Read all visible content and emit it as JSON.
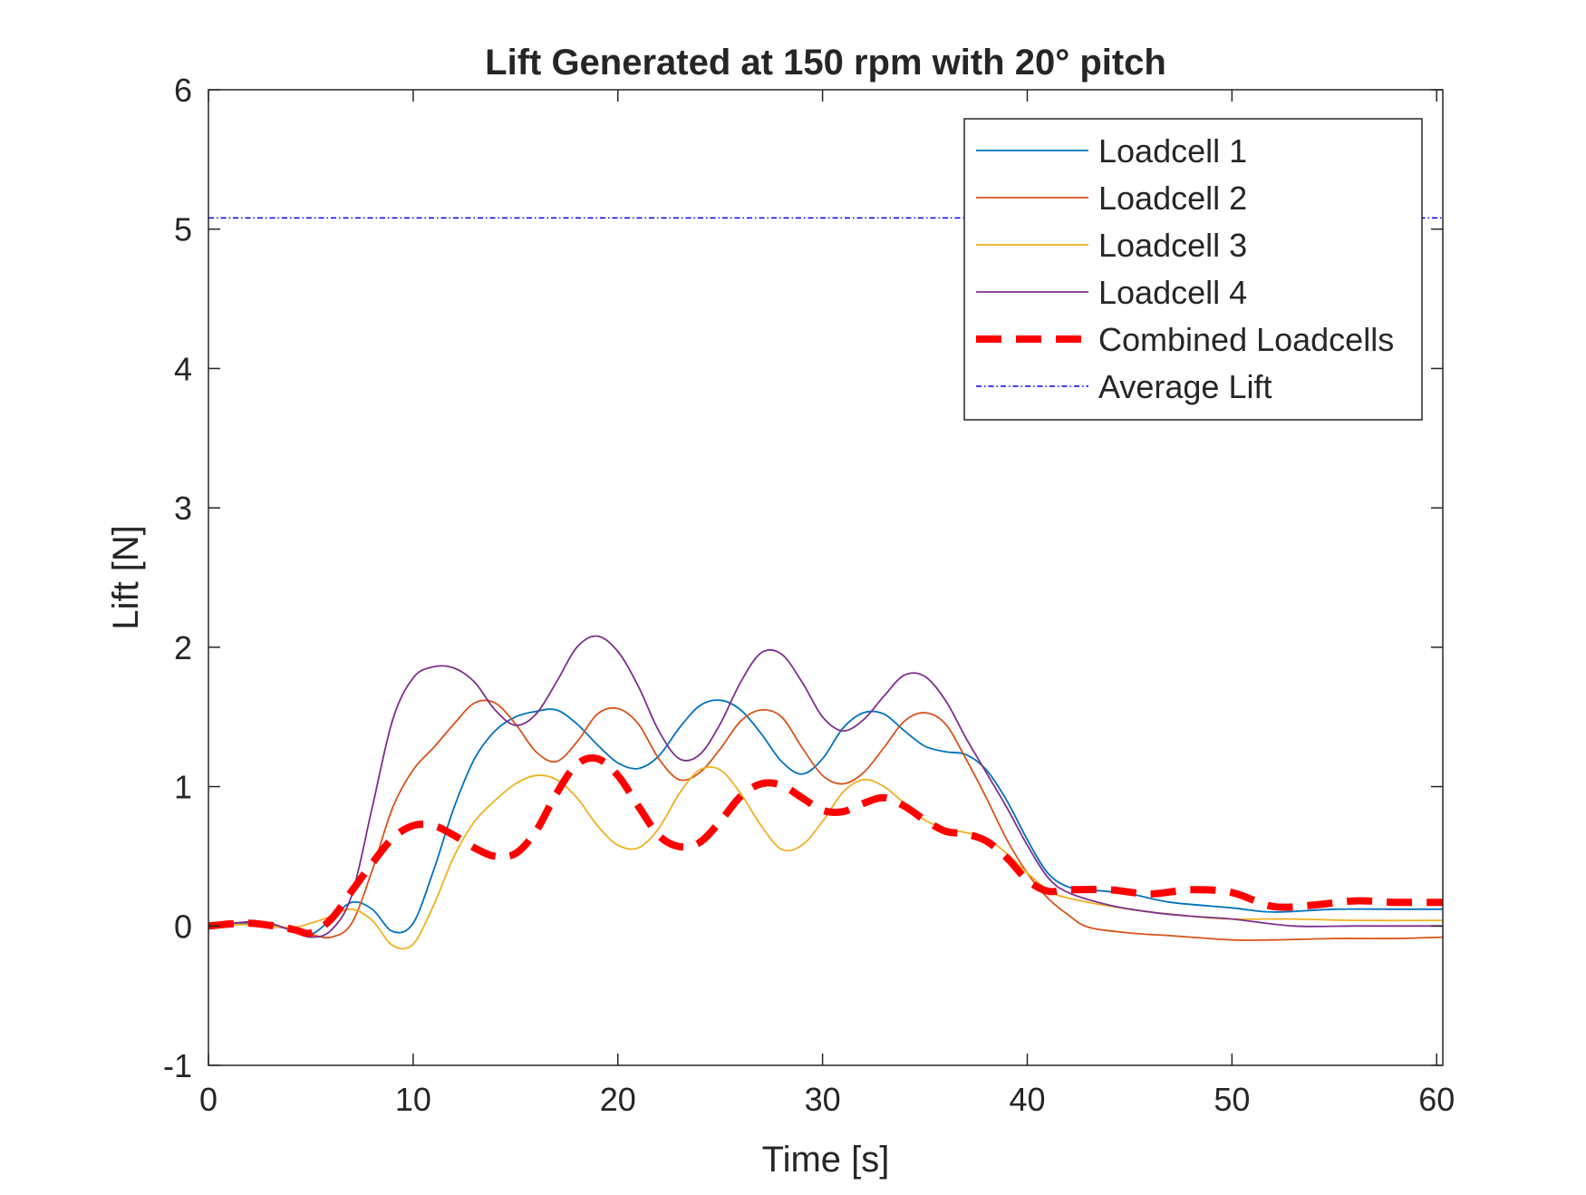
{
  "chart_data": {
    "type": "line",
    "title": "Lift Generated at 150 rpm with 20° pitch",
    "xlabel": "Time [s]",
    "ylabel": "Lift [N]",
    "xlim": [
      0,
      60.3
    ],
    "ylim": [
      -1,
      6
    ],
    "xticks": [
      0,
      10,
      20,
      30,
      40,
      50,
      60
    ],
    "yticks": [
      -1,
      0,
      1,
      2,
      3,
      4,
      5,
      6
    ],
    "grid": false,
    "legend_position": "top-right",
    "series": [
      {
        "name": "Loadcell 1",
        "color": "#0072BD",
        "style": "solid",
        "points": [
          [
            0,
            0
          ],
          [
            2,
            0.02
          ],
          [
            4,
            -0.02
          ],
          [
            5,
            -0.06
          ],
          [
            6,
            0.05
          ],
          [
            7,
            0.17
          ],
          [
            8,
            0.12
          ],
          [
            9,
            -0.04
          ],
          [
            10,
            0.02
          ],
          [
            11,
            0.4
          ],
          [
            12,
            0.85
          ],
          [
            13,
            1.2
          ],
          [
            14,
            1.4
          ],
          [
            15,
            1.5
          ],
          [
            16,
            1.54
          ],
          [
            17,
            1.55
          ],
          [
            18,
            1.45
          ],
          [
            19,
            1.3
          ],
          [
            20,
            1.17
          ],
          [
            21,
            1.13
          ],
          [
            22,
            1.22
          ],
          [
            23,
            1.42
          ],
          [
            24,
            1.58
          ],
          [
            25,
            1.62
          ],
          [
            26,
            1.55
          ],
          [
            27,
            1.38
          ],
          [
            28,
            1.18
          ],
          [
            29,
            1.09
          ],
          [
            30,
            1.2
          ],
          [
            31,
            1.42
          ],
          [
            32,
            1.53
          ],
          [
            33,
            1.52
          ],
          [
            34,
            1.4
          ],
          [
            35,
            1.29
          ],
          [
            36,
            1.25
          ],
          [
            37,
            1.23
          ],
          [
            38,
            1.12
          ],
          [
            39,
            0.9
          ],
          [
            40,
            0.62
          ],
          [
            41,
            0.38
          ],
          [
            42,
            0.28
          ],
          [
            43,
            0.26
          ],
          [
            45,
            0.23
          ],
          [
            47,
            0.17
          ],
          [
            50,
            0.13
          ],
          [
            52,
            0.1
          ],
          [
            55,
            0.12
          ],
          [
            58,
            0.12
          ],
          [
            60.3,
            0.12
          ]
        ]
      },
      {
        "name": "Loadcell 2",
        "color": "#D95319",
        "style": "solid",
        "points": [
          [
            0,
            0
          ],
          [
            2,
            0.01
          ],
          [
            4,
            -0.02
          ],
          [
            5,
            -0.06
          ],
          [
            6,
            -0.08
          ],
          [
            7,
            0.02
          ],
          [
            8,
            0.4
          ],
          [
            9,
            0.85
          ],
          [
            10,
            1.12
          ],
          [
            11,
            1.28
          ],
          [
            12,
            1.45
          ],
          [
            13,
            1.6
          ],
          [
            14,
            1.6
          ],
          [
            15,
            1.45
          ],
          [
            16,
            1.25
          ],
          [
            17,
            1.18
          ],
          [
            18,
            1.32
          ],
          [
            19,
            1.52
          ],
          [
            20,
            1.56
          ],
          [
            21,
            1.45
          ],
          [
            22,
            1.2
          ],
          [
            23,
            1.05
          ],
          [
            24,
            1.1
          ],
          [
            25,
            1.27
          ],
          [
            26,
            1.47
          ],
          [
            27,
            1.55
          ],
          [
            28,
            1.5
          ],
          [
            29,
            1.28
          ],
          [
            30,
            1.08
          ],
          [
            31,
            1.02
          ],
          [
            32,
            1.1
          ],
          [
            33,
            1.28
          ],
          [
            34,
            1.47
          ],
          [
            35,
            1.53
          ],
          [
            36,
            1.45
          ],
          [
            37,
            1.2
          ],
          [
            38,
            0.92
          ],
          [
            39,
            0.62
          ],
          [
            40,
            0.38
          ],
          [
            41,
            0.2
          ],
          [
            42,
            0.08
          ],
          [
            43,
            -0.01
          ],
          [
            45,
            -0.05
          ],
          [
            47,
            -0.07
          ],
          [
            50,
            -0.1
          ],
          [
            52,
            -0.1
          ],
          [
            55,
            -0.09
          ],
          [
            58,
            -0.09
          ],
          [
            60.3,
            -0.08
          ]
        ]
      },
      {
        "name": "Loadcell 3",
        "color": "#EDB120",
        "style": "solid",
        "points": [
          [
            0,
            0
          ],
          [
            2,
            0.01
          ],
          [
            4,
            -0.01
          ],
          [
            5,
            0.02
          ],
          [
            6,
            0.07
          ],
          [
            7,
            0.12
          ],
          [
            8,
            0.04
          ],
          [
            9,
            -0.14
          ],
          [
            10,
            -0.13
          ],
          [
            11,
            0.15
          ],
          [
            12,
            0.5
          ],
          [
            13,
            0.75
          ],
          [
            14,
            0.9
          ],
          [
            15,
            1.02
          ],
          [
            16,
            1.08
          ],
          [
            17,
            1.05
          ],
          [
            18,
            0.92
          ],
          [
            19,
            0.72
          ],
          [
            20,
            0.58
          ],
          [
            21,
            0.56
          ],
          [
            22,
            0.7
          ],
          [
            23,
            0.95
          ],
          [
            24,
            1.12
          ],
          [
            25,
            1.12
          ],
          [
            26,
            0.95
          ],
          [
            27,
            0.72
          ],
          [
            28,
            0.55
          ],
          [
            29,
            0.58
          ],
          [
            30,
            0.75
          ],
          [
            31,
            0.96
          ],
          [
            32,
            1.05
          ],
          [
            33,
            1.0
          ],
          [
            34,
            0.88
          ],
          [
            35,
            0.76
          ],
          [
            36,
            0.7
          ],
          [
            37,
            0.67
          ],
          [
            38,
            0.63
          ],
          [
            39,
            0.52
          ],
          [
            40,
            0.38
          ],
          [
            41,
            0.26
          ],
          [
            42,
            0.2
          ],
          [
            45,
            0.12
          ],
          [
            48,
            0.07
          ],
          [
            50,
            0.05
          ],
          [
            53,
            0.05
          ],
          [
            56,
            0.04
          ],
          [
            60.3,
            0.04
          ]
        ]
      },
      {
        "name": "Loadcell 4",
        "color": "#7E2F8E",
        "style": "solid",
        "points": [
          [
            0,
            0
          ],
          [
            2,
            0.03
          ],
          [
            3,
            0.02
          ],
          [
            4,
            -0.03
          ],
          [
            5,
            -0.08
          ],
          [
            6,
            -0.03
          ],
          [
            7,
            0.22
          ],
          [
            8,
            0.85
          ],
          [
            9,
            1.48
          ],
          [
            10,
            1.78
          ],
          [
            11,
            1.86
          ],
          [
            12,
            1.85
          ],
          [
            13,
            1.75
          ],
          [
            14,
            1.55
          ],
          [
            15,
            1.44
          ],
          [
            16,
            1.52
          ],
          [
            17,
            1.75
          ],
          [
            18,
            2.0
          ],
          [
            19,
            2.08
          ],
          [
            20,
            1.97
          ],
          [
            21,
            1.72
          ],
          [
            22,
            1.4
          ],
          [
            23,
            1.2
          ],
          [
            24,
            1.23
          ],
          [
            25,
            1.45
          ],
          [
            26,
            1.75
          ],
          [
            27,
            1.96
          ],
          [
            28,
            1.95
          ],
          [
            29,
            1.75
          ],
          [
            30,
            1.5
          ],
          [
            31,
            1.4
          ],
          [
            32,
            1.48
          ],
          [
            33,
            1.65
          ],
          [
            34,
            1.8
          ],
          [
            35,
            1.79
          ],
          [
            36,
            1.62
          ],
          [
            37,
            1.35
          ],
          [
            38,
            1.1
          ],
          [
            39,
            0.85
          ],
          [
            40,
            0.58
          ],
          [
            41,
            0.35
          ],
          [
            42,
            0.24
          ],
          [
            44,
            0.15
          ],
          [
            46,
            0.1
          ],
          [
            48,
            0.07
          ],
          [
            50,
            0.05
          ],
          [
            53,
            0.0
          ],
          [
            56,
            0.0
          ],
          [
            60.3,
            0.0
          ]
        ]
      },
      {
        "name": "Combined Loadcells",
        "color": "#FF0000",
        "style": "dashed",
        "points": [
          [
            0,
            0
          ],
          [
            2,
            0.02
          ],
          [
            4,
            -0.02
          ],
          [
            5,
            -0.05
          ],
          [
            6,
            0.05
          ],
          [
            7,
            0.25
          ],
          [
            8,
            0.45
          ],
          [
            9,
            0.63
          ],
          [
            10,
            0.72
          ],
          [
            11,
            0.72
          ],
          [
            12,
            0.65
          ],
          [
            13,
            0.56
          ],
          [
            14,
            0.5
          ],
          [
            15,
            0.52
          ],
          [
            16,
            0.68
          ],
          [
            17,
            0.95
          ],
          [
            18,
            1.16
          ],
          [
            19,
            1.2
          ],
          [
            20,
            1.08
          ],
          [
            21,
            0.86
          ],
          [
            22,
            0.65
          ],
          [
            23,
            0.57
          ],
          [
            24,
            0.6
          ],
          [
            25,
            0.75
          ],
          [
            26,
            0.93
          ],
          [
            27,
            1.02
          ],
          [
            28,
            1.01
          ],
          [
            29,
            0.92
          ],
          [
            30,
            0.83
          ],
          [
            31,
            0.82
          ],
          [
            32,
            0.88
          ],
          [
            33,
            0.92
          ],
          [
            34,
            0.86
          ],
          [
            35,
            0.76
          ],
          [
            36,
            0.68
          ],
          [
            37,
            0.66
          ],
          [
            38,
            0.61
          ],
          [
            39,
            0.49
          ],
          [
            40,
            0.33
          ],
          [
            41,
            0.25
          ],
          [
            42,
            0.26
          ],
          [
            44,
            0.26
          ],
          [
            46,
            0.23
          ],
          [
            48,
            0.26
          ],
          [
            50,
            0.24
          ],
          [
            52,
            0.14
          ],
          [
            54,
            0.15
          ],
          [
            56,
            0.18
          ],
          [
            58,
            0.17
          ],
          [
            60.3,
            0.17
          ]
        ]
      },
      {
        "name": "Average Lift",
        "color": "#0000FF",
        "style": "dashdot",
        "points": [
          [
            0,
            5.08
          ],
          [
            60.3,
            5.08
          ]
        ]
      }
    ]
  }
}
